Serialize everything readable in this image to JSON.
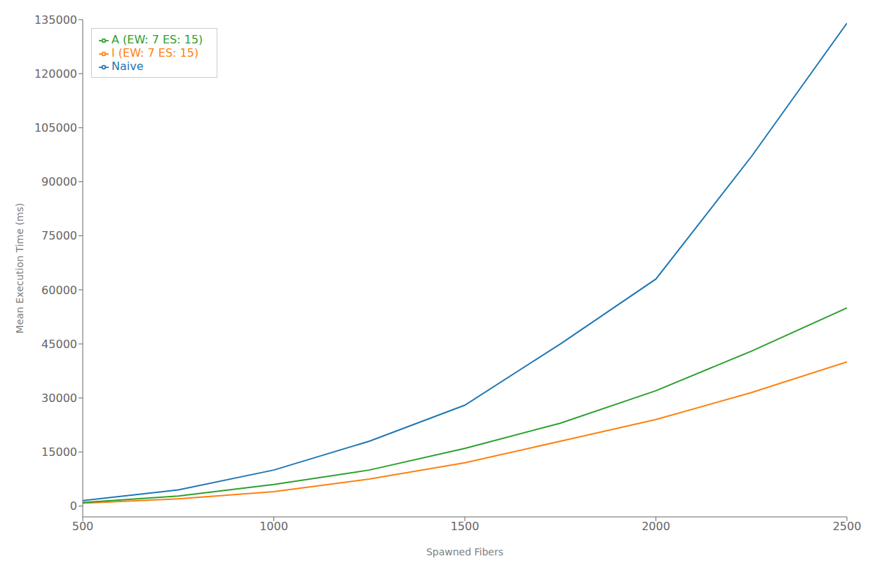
{
  "chart_data": {
    "type": "line",
    "xlabel": "Spawned Fibers",
    "ylabel": "Mean Execution Time (ms)",
    "x": [
      500,
      750,
      1000,
      1250,
      1500,
      1750,
      2000,
      2250,
      2500
    ],
    "series": [
      {
        "name": "Naive",
        "color": "#1f77b4",
        "values": [
          1500,
          4500,
          10000,
          18000,
          28000,
          45000,
          63000,
          97000,
          134000
        ]
      },
      {
        "name": "I (EW: 7 ES: 15)",
        "color": "#ff7f0e",
        "values": [
          800,
          2000,
          4000,
          7500,
          12000,
          18000,
          24000,
          31500,
          40000
        ]
      },
      {
        "name": "A (EW: 7 ES: 15)",
        "color": "#2ca02c",
        "values": [
          1000,
          2800,
          6000,
          10000,
          16000,
          23000,
          32000,
          43000,
          55000
        ]
      }
    ],
    "xlim": [
      500,
      2500
    ],
    "ylim": [
      -3000,
      135000
    ],
    "xticks": [
      500,
      1000,
      1500,
      2000,
      2500
    ],
    "yticks": [
      0,
      15000,
      30000,
      45000,
      60000,
      75000,
      90000,
      105000,
      120000,
      135000
    ],
    "legend": "upper left",
    "grid": false
  }
}
